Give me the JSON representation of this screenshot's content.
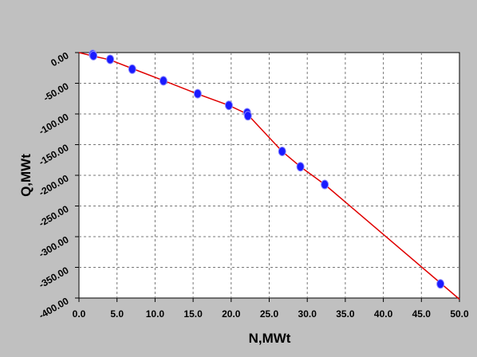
{
  "chart_data": {
    "type": "scatter",
    "title": "",
    "xlabel": "N,MWt",
    "ylabel": "Q,MWt",
    "xlim": [
      0,
      50
    ],
    "ylim": [
      -400,
      0
    ],
    "x_ticks": [
      "0.0",
      "5.0",
      "10.0",
      "15.0",
      "20.0",
      "25.0",
      "30.0",
      "35.0",
      "40.0",
      "45.0",
      "50.0"
    ],
    "x_tick_values": [
      0,
      5,
      10,
      15,
      20,
      25,
      30,
      35,
      40,
      45,
      50
    ],
    "y_ticks": [
      "0.00",
      "-50.00",
      "-100.00",
      "-150.00",
      "-200.00",
      "-250.00",
      "-300.00",
      "-350.00",
      "-400.00"
    ],
    "y_tick_values": [
      0,
      -50,
      -100,
      -150,
      -200,
      -250,
      -300,
      -350,
      -400
    ],
    "grid": true,
    "series": [
      {
        "kind": "points",
        "color": "#1a1aff",
        "points": [
          [
            1.8,
            -3
          ],
          [
            1.9,
            -5
          ],
          [
            4.1,
            -11
          ],
          [
            7.0,
            -27
          ],
          [
            11.1,
            -46
          ],
          [
            15.6,
            -67
          ],
          [
            19.7,
            -86
          ],
          [
            22.1,
            -98
          ],
          [
            22.2,
            -103
          ],
          [
            26.7,
            -161
          ],
          [
            29.1,
            -186
          ],
          [
            32.3,
            -215
          ],
          [
            47.5,
            -377
          ]
        ]
      },
      {
        "kind": "line",
        "color": "#e00000",
        "points": [
          [
            0,
            0
          ],
          [
            2,
            -6
          ],
          [
            4.1,
            -12
          ],
          [
            7,
            -26
          ],
          [
            11,
            -45
          ],
          [
            15.5,
            -67
          ],
          [
            19.7,
            -86
          ],
          [
            22.1,
            -100
          ],
          [
            26.7,
            -161
          ],
          [
            29.1,
            -186
          ],
          [
            32.3,
            -215
          ],
          [
            50,
            -402
          ]
        ]
      }
    ]
  }
}
